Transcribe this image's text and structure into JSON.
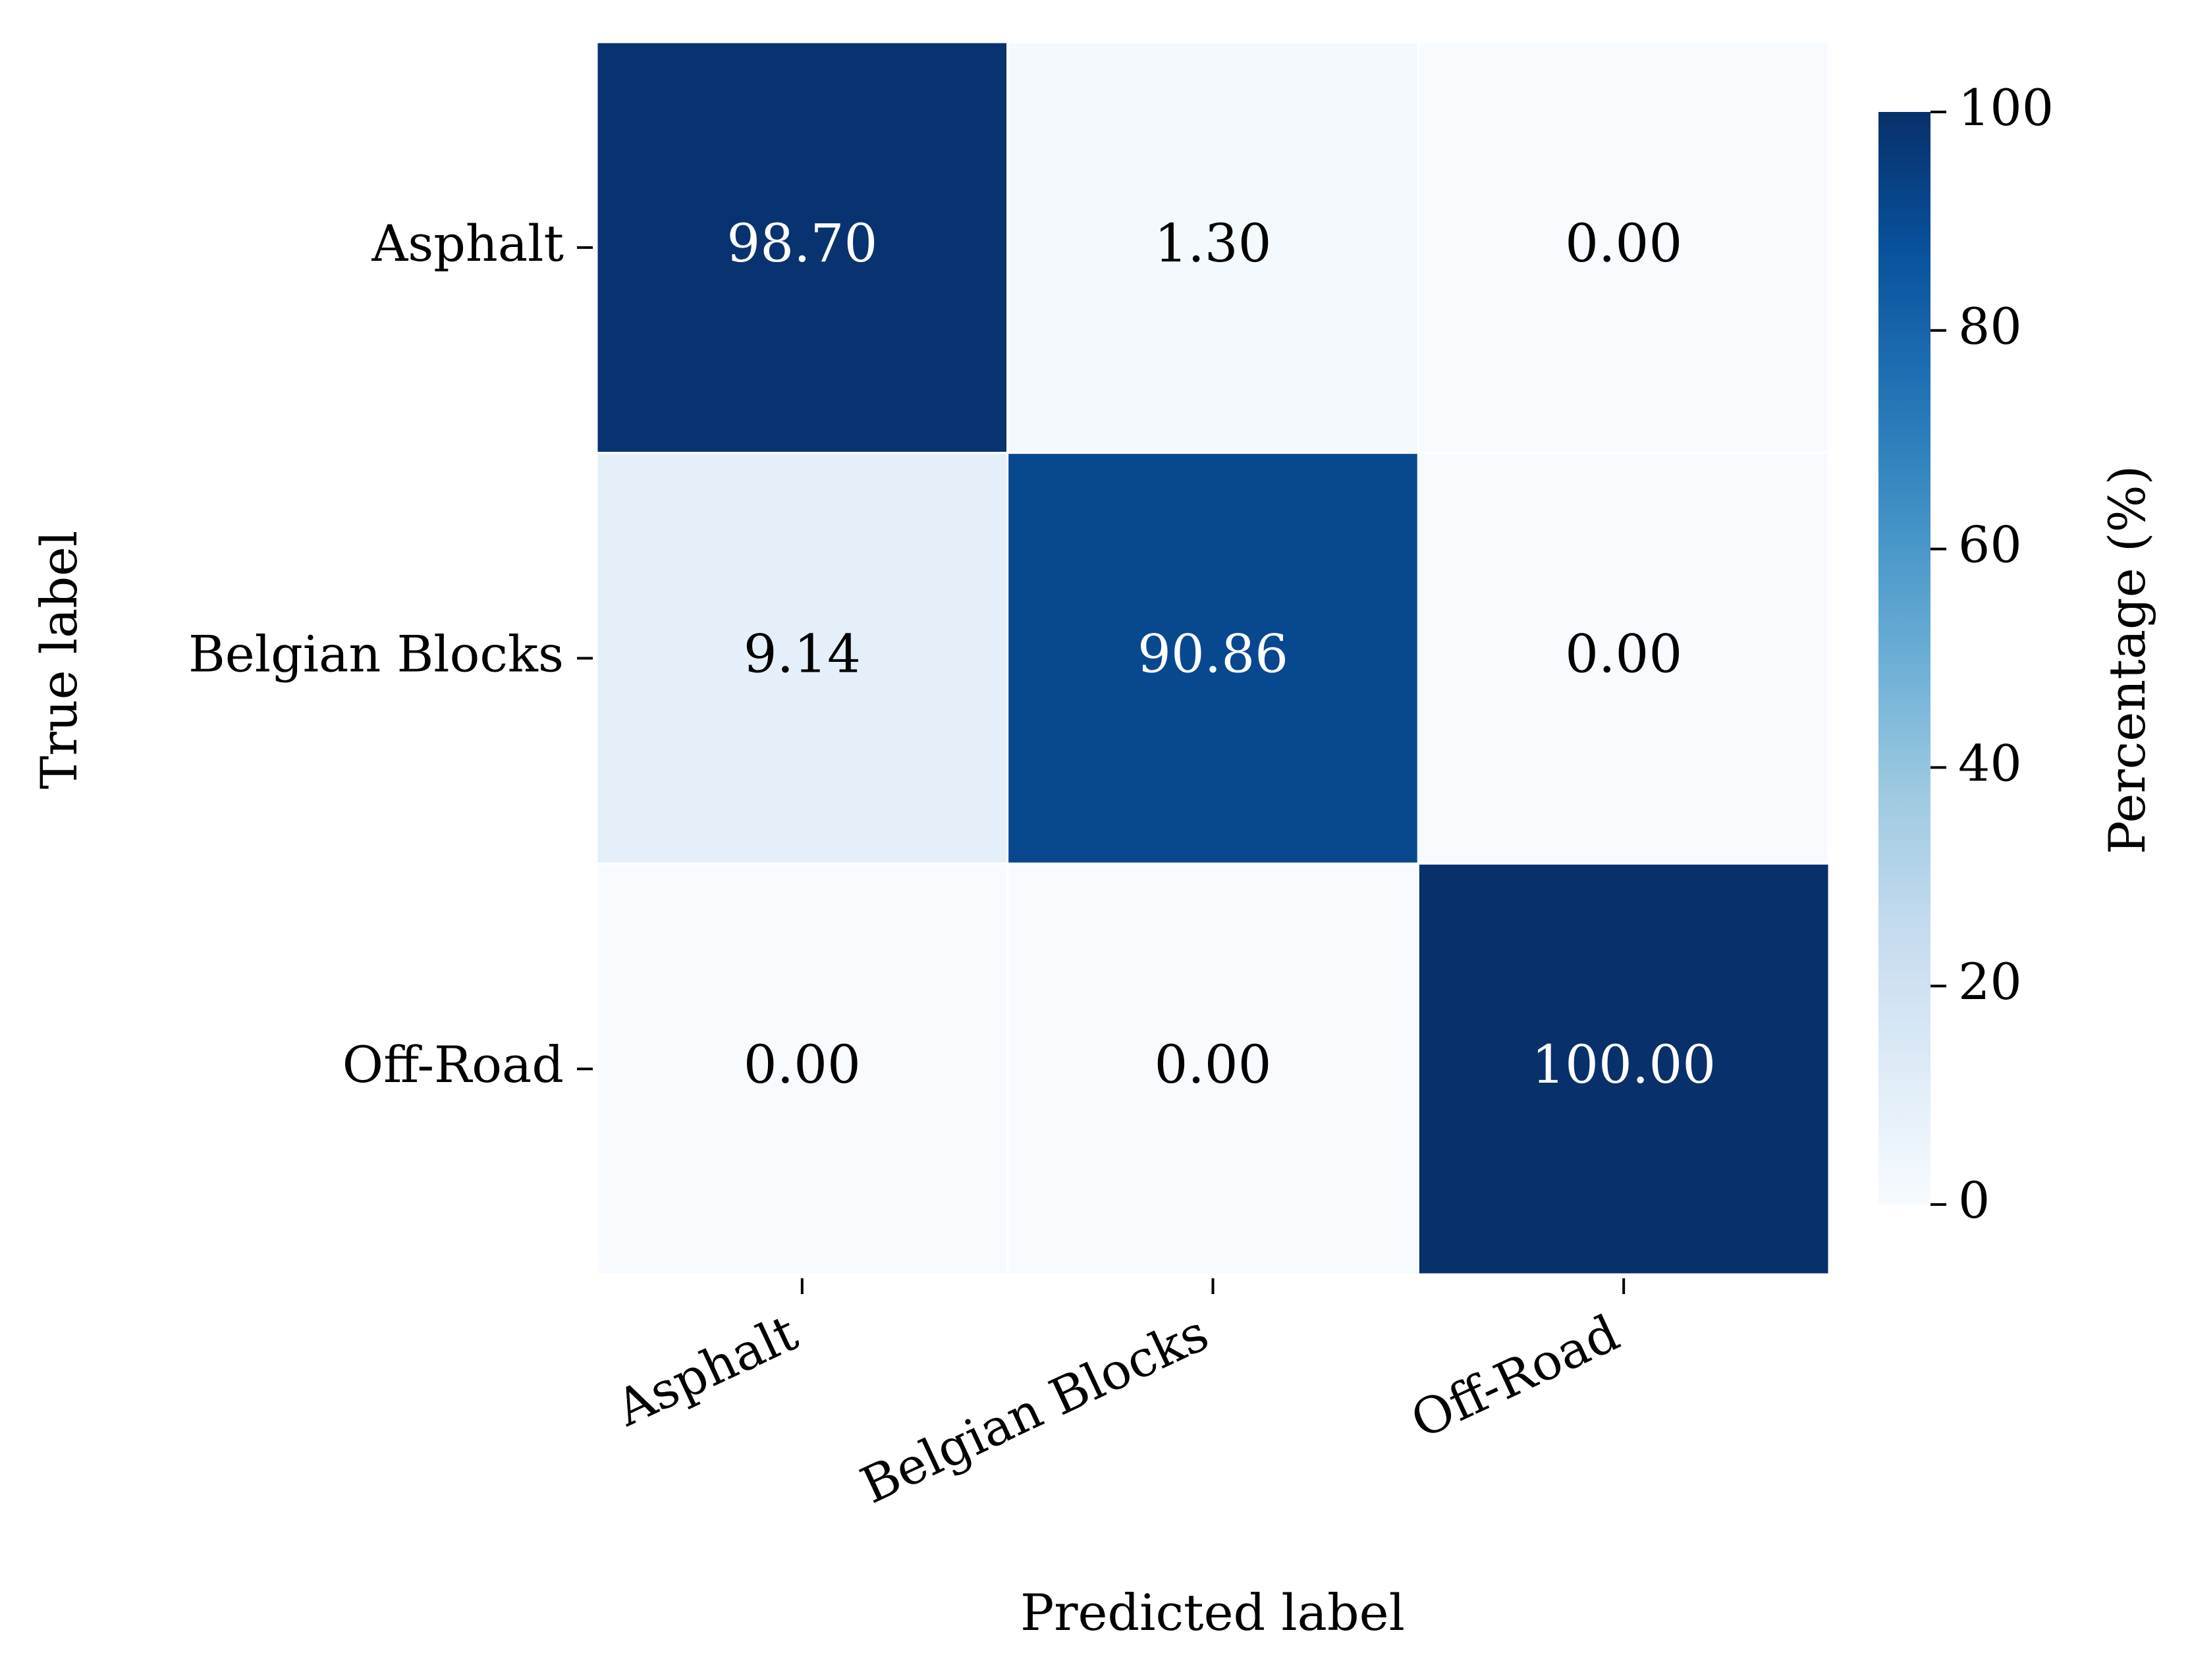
{
  "chart_data": {
    "type": "heatmap",
    "x_label": "Predicted label",
    "y_label": "True label",
    "x_categories": [
      "Asphalt",
      "Belgian Blocks",
      "Off-Road"
    ],
    "y_categories": [
      "Asphalt",
      "Belgian Blocks",
      "Off-Road"
    ],
    "values": [
      [
        98.7,
        1.3,
        0
      ],
      [
        9.14,
        90.86,
        0
      ],
      [
        0,
        0,
        100
      ]
    ],
    "value_labels": [
      [
        "98.70",
        "1.30",
        "0.00"
      ],
      [
        "9.14",
        "90.86",
        "0.00"
      ],
      [
        "0.00",
        "0.00",
        "100.00"
      ]
    ],
    "colormap": [
      "#f7fbff",
      "#deebf7",
      "#c6dbef",
      "#9ecae1",
      "#6baed6",
      "#4292c6",
      "#2171b5",
      "#08519c",
      "#08306b"
    ],
    "colorbar_label": "Percentage (%)",
    "zlim": [
      0,
      100
    ],
    "zticks": [
      0,
      20,
      40,
      60,
      80,
      100
    ]
  }
}
